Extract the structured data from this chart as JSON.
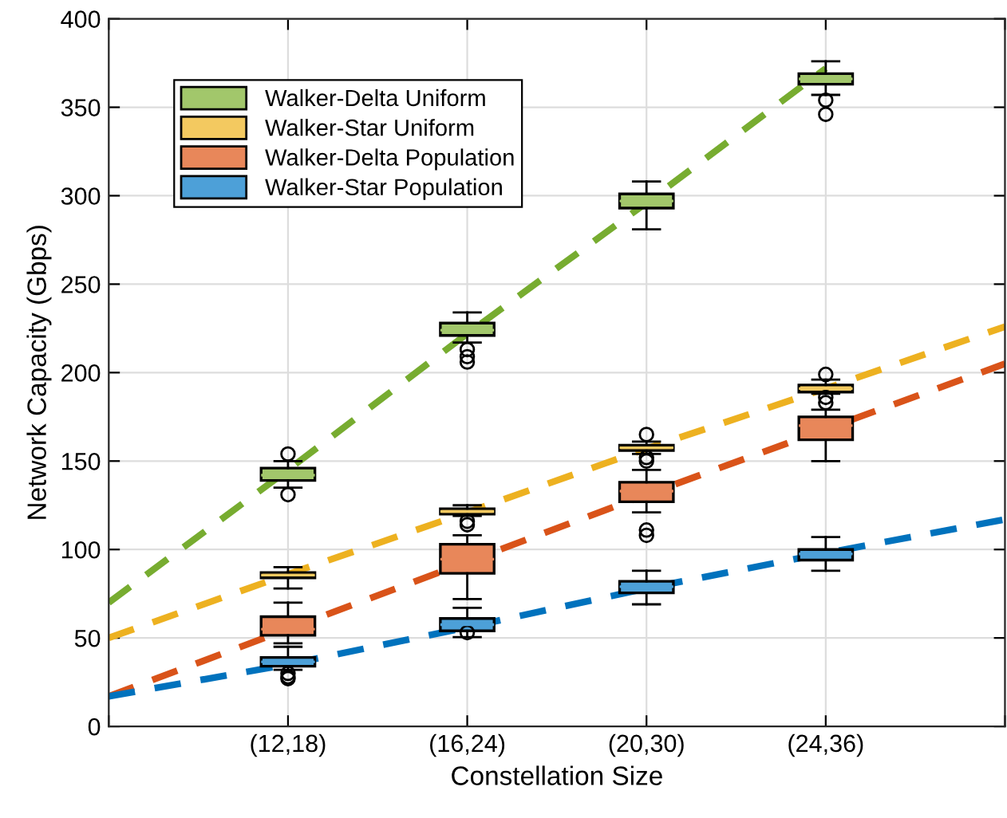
{
  "chart_data": {
    "type": "box",
    "xlabel": "Constellation Size",
    "ylabel": "Network Capacity (Gbps)",
    "categories": [
      null,
      "(12,18)",
      "(16,24)",
      "(20,30)",
      "(24,36)",
      null
    ],
    "ylim": [
      0,
      400
    ],
    "yticks": [
      0,
      50,
      100,
      150,
      200,
      250,
      300,
      350,
      400
    ],
    "grid": true,
    "legend": "top left",
    "series": [
      {
        "name": "Walker-Delta Uniform",
        "color": "#a2c76b",
        "boxes": [
          null,
          {
            "low": 135,
            "q1": 139,
            "median": 142,
            "q3": 146,
            "high": 150,
            "outliers": [
              154,
              131
            ]
          },
          {
            "low": 217,
            "q1": 221,
            "median": 224,
            "q3": 228,
            "high": 234,
            "outliers": [
              213,
              209,
              206
            ]
          },
          {
            "low": 281,
            "q1": 293,
            "median": 297,
            "q3": 301,
            "high": 308
          },
          {
            "low": 357,
            "q1": 363,
            "median": 366,
            "q3": 369,
            "high": 376,
            "outliers": [
              354,
              346
            ]
          },
          null
        ]
      },
      {
        "name": "Walker-Star Uniform",
        "color": "#f3c960",
        "boxes": [
          null,
          {
            "low": 78,
            "q1": 84,
            "median": 85.5,
            "q3": 87,
            "high": 90
          },
          {
            "low": 119,
            "q1": 120,
            "median": 121.5,
            "q3": 123,
            "high": 125,
            "outliers": [
              116,
              114
            ]
          },
          {
            "low": 154,
            "q1": 156,
            "median": 157.5,
            "q3": 159,
            "high": 161,
            "outliers": [
              165,
              152,
              150
            ]
          },
          {
            "low": 188,
            "q1": 189,
            "median": 191,
            "q3": 193,
            "high": 196,
            "outliers": [
              199,
              186,
              183
            ]
          },
          null
        ]
      },
      {
        "name": "Walker-Delta Population",
        "color": "#e8875a",
        "boxes": [
          null,
          {
            "low": 47,
            "q1": 51.5,
            "median": 55,
            "q3": 62,
            "high": 70
          },
          {
            "low": 72,
            "q1": 86.5,
            "median": 94.5,
            "q3": 103,
            "high": 108
          },
          {
            "low": 121,
            "q1": 127,
            "median": 133,
            "q3": 138,
            "high": 145,
            "outliers": [
              111,
              108
            ]
          },
          {
            "low": 150,
            "q1": 162,
            "median": 170,
            "q3": 175,
            "high": 179
          },
          null
        ]
      },
      {
        "name": "Walker-Star Population",
        "color": "#4da0d8",
        "boxes": [
          null,
          {
            "low": 32,
            "q1": 34,
            "median": 36.5,
            "q3": 39,
            "high": 45,
            "outliers": [
              30,
              28,
              27
            ]
          },
          {
            "low": 50.5,
            "q1": 54,
            "median": 57.5,
            "q3": 61,
            "high": 67,
            "outliers": [
              53
            ]
          },
          {
            "low": 69,
            "q1": 75.5,
            "median": 79,
            "q3": 82,
            "high": 88
          },
          {
            "low": 88,
            "q1": 94,
            "median": 97.5,
            "q3": 100,
            "high": 107
          },
          null
        ]
      },
      {
        "type": "line",
        "color": "#77ac30",
        "line_style": "dashed",
        "values": [
          70,
          145,
          222,
          296,
          372,
          null
        ]
      },
      {
        "type": "line",
        "color": "#edb120",
        "line_style": "dashed",
        "values": [
          50,
          86,
          121,
          157,
          191,
          226
        ]
      },
      {
        "type": "line",
        "color": "#d95319",
        "line_style": "dashed",
        "values": [
          17,
          55,
          93,
          131,
          168,
          205
        ]
      },
      {
        "type": "line",
        "color": "#0072bd",
        "line_style": "dashed",
        "values": [
          17,
          35,
          56,
          78,
          98,
          117
        ]
      }
    ]
  }
}
